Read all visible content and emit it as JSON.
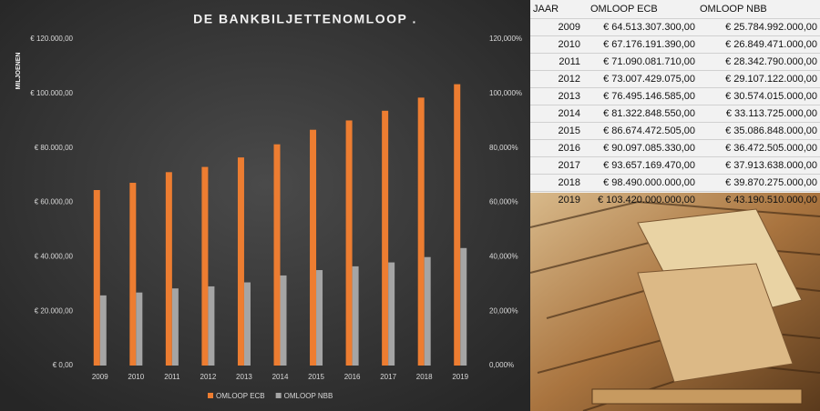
{
  "chart_data": {
    "type": "bar",
    "title": "DE BANKBILJETTENOMLOOP .",
    "y_label": "MILJOENEN",
    "categories": [
      "2009",
      "2010",
      "2011",
      "2012",
      "2013",
      "2014",
      "2015",
      "2016",
      "2017",
      "2018",
      "2019"
    ],
    "series": [
      {
        "name": "OMLOOP ECB",
        "color": "#ed7d31",
        "values": [
          64513.3073,
          67176.19139,
          71090.08171,
          73007.429075,
          76495.146585,
          81322.84855,
          86674.472505,
          90097.08533,
          93657.16947,
          98490,
          103420
        ]
      },
      {
        "name": "OMLOOP NBB",
        "color": "#a5a5a5",
        "values": [
          25784.992,
          26849.471,
          28342.79,
          29107.122,
          30574.015,
          33113.725,
          35086.848,
          36472.505,
          37913.638,
          39870.275,
          43190.51
        ]
      }
    ],
    "ylim": [
      0,
      120000
    ],
    "yticks": [
      {
        "value": 0,
        "label": "€ 0,00"
      },
      {
        "value": 20000,
        "label": "€ 20.000,00"
      },
      {
        "value": 40000,
        "label": "€ 40.000,00"
      },
      {
        "value": 60000,
        "label": "€ 60.000,00"
      },
      {
        "value": 80000,
        "label": "€ 80.000,00"
      },
      {
        "value": 100000,
        "label": "€ 100.000,00"
      },
      {
        "value": 120000,
        "label": "€ 120.000,00"
      }
    ],
    "y2lim": [
      0,
      120
    ],
    "y2ticks": [
      {
        "value": 0,
        "label": "0,000%"
      },
      {
        "value": 20,
        "label": "20,000%"
      },
      {
        "value": 40,
        "label": "40,000%"
      },
      {
        "value": 60,
        "label": "60,000%"
      },
      {
        "value": 80,
        "label": "80,000%"
      },
      {
        "value": 100,
        "label": "100,000%"
      },
      {
        "value": 120,
        "label": "120,000%"
      }
    ],
    "grid": false,
    "legend": "bottom"
  },
  "table": {
    "header": [
      "JAAR",
      "OMLOOP ECB",
      "OMLOOP NBB"
    ],
    "rows": [
      [
        "2009",
        "€ 64.513.307.300,00",
        "€ 25.784.992.000,00"
      ],
      [
        "2010",
        "€ 67.176.191.390,00",
        "€ 26.849.471.000,00"
      ],
      [
        "2011",
        "€ 71.090.081.710,00",
        "€ 28.342.790.000,00"
      ],
      [
        "2012",
        "€ 73.007.429.075,00",
        "€ 29.107.122.000,00"
      ],
      [
        "2013",
        "€ 76.495.146.585,00",
        "€ 30.574.015.000,00"
      ],
      [
        "2014",
        "€ 81.322.848.550,00",
        "€ 33.113.725.000,00"
      ],
      [
        "2015",
        "€ 86.674.472.505,00",
        "€ 35.086.848.000,00"
      ],
      [
        "2016",
        "€ 90.097.085.330,00",
        "€ 36.472.505.000,00"
      ],
      [
        "2017",
        "€ 93.657.169.470,00",
        "€ 37.913.638.000,00"
      ],
      [
        "2018",
        "€ 98.490.000.000,00",
        "€ 39.870.275.000,00"
      ],
      [
        "2019",
        "€ 103.420.000.000,00",
        "€ 43.190.510.000,00"
      ]
    ]
  }
}
